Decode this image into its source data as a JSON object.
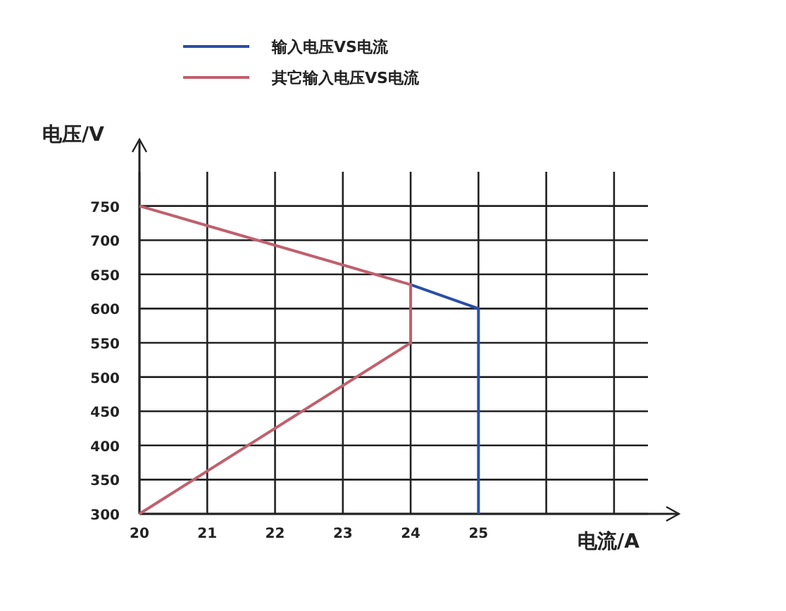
{
  "chart_data": {
    "type": "line",
    "xlabel": "电流/A",
    "ylabel": "电压/V",
    "series": [
      {
        "name": "输入电压VS电流",
        "color": "#2a4fa8",
        "x": [
          24,
          25,
          25
        ],
        "values": [
          635,
          600,
          300
        ]
      },
      {
        "name": "其它输入电压VS电流",
        "color": "#c0606e",
        "x": [
          20,
          24,
          24,
          20
        ],
        "values": [
          750,
          635,
          550,
          300
        ]
      }
    ],
    "xlim": [
      20,
      27.5
    ],
    "ylim": [
      300,
      800
    ],
    "xticks": [
      20,
      21,
      22,
      23,
      24,
      25,
      {
        "value": 26,
        "label": null
      },
      {
        "value": 27,
        "label": null
      }
    ],
    "yticks": [
      300,
      350,
      400,
      450,
      500,
      550,
      600,
      650,
      700,
      750
    ],
    "grid": true,
    "legend": "top",
    "marker": "none",
    "line_style": "solid"
  }
}
